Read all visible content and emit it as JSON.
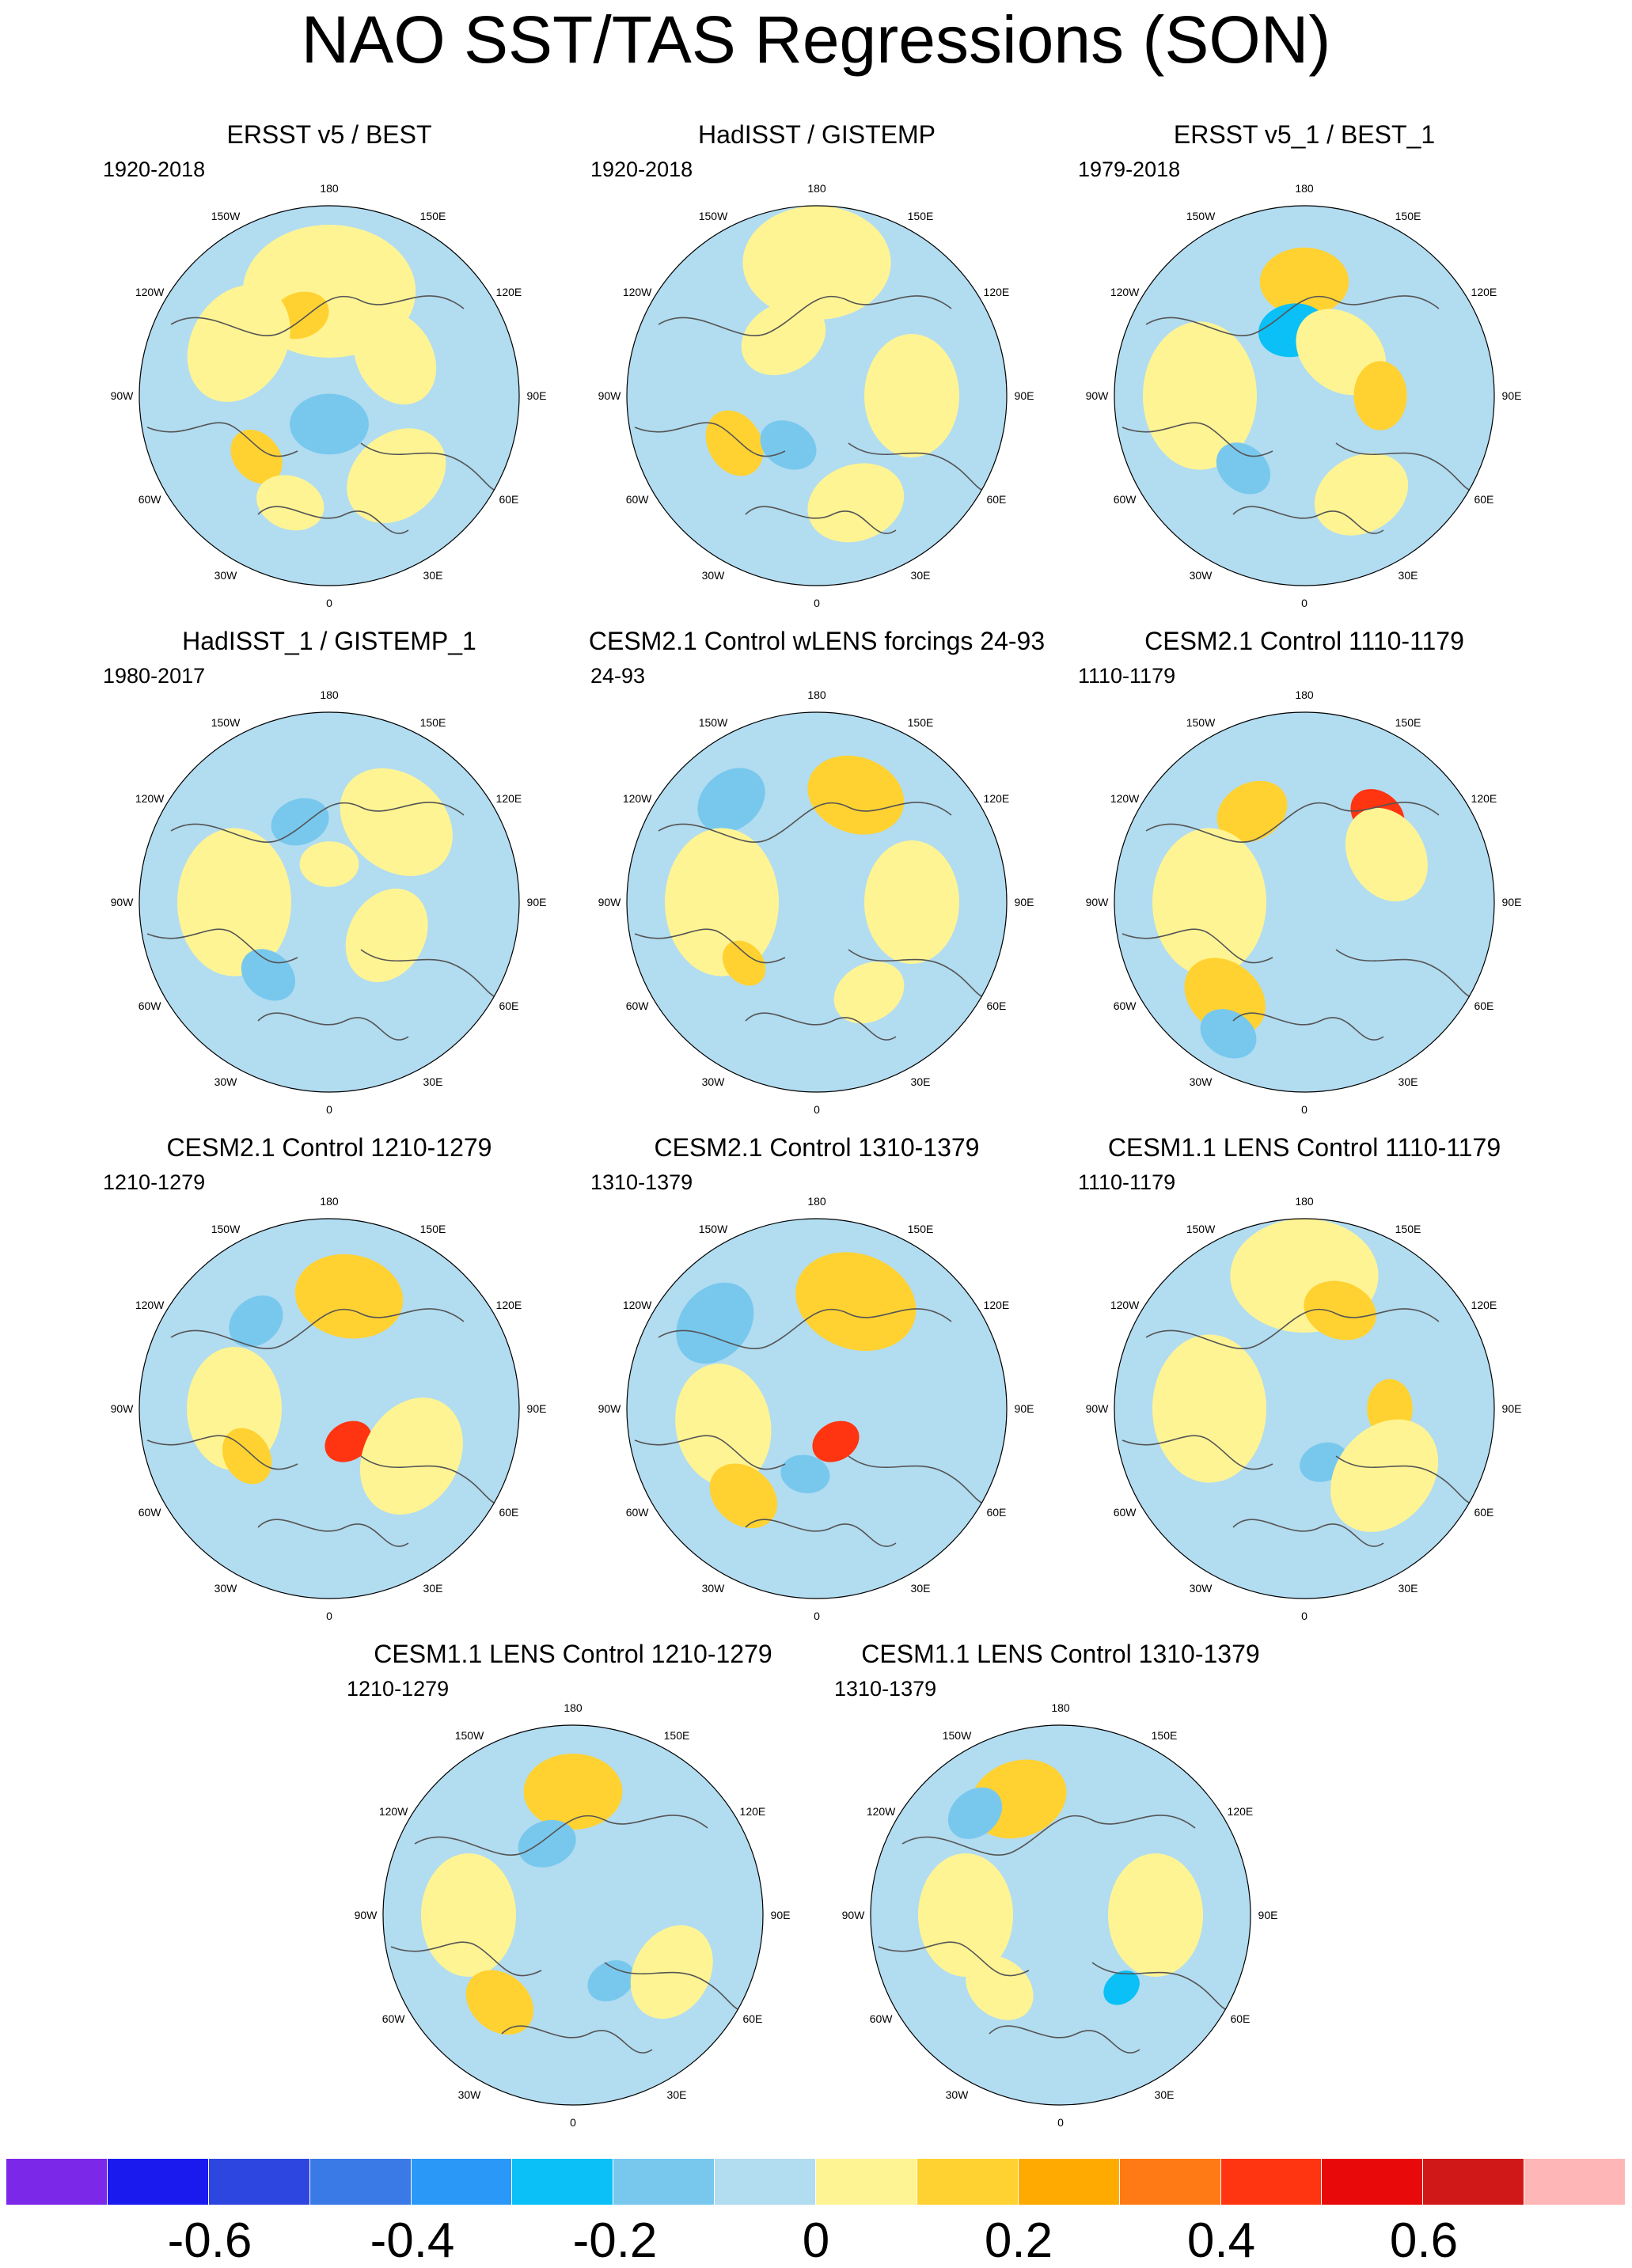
{
  "title": "NAO SST/TAS Regressions (SON)",
  "colors": {
    "land_outline": "#555555",
    "palette": [
      "#7c28e8",
      "#1a1aee",
      "#2e46e0",
      "#3a7ae6",
      "#2a98f6",
      "#0ac0f6",
      "#78c8ee",
      "#b2dcf0",
      "#fff494",
      "#ffd232",
      "#ffaa00",
      "#ff7a14",
      "#ff3410",
      "#e80a0a",
      "#d01818",
      "#ffb6b6"
    ]
  },
  "colorbar": {
    "labels": [
      "-0.6",
      "-0.4",
      "-0.2",
      "0",
      "0.2",
      "0.4",
      "0.6"
    ]
  },
  "longitude_labels": [
    "180",
    "150E",
    "120E",
    "90E",
    "60E",
    "30E",
    "0",
    "30W",
    "60W",
    "90W",
    "120W",
    "150W"
  ],
  "panels": [
    {
      "title": "ERSST v5 / BEST",
      "period": "1920-2018"
    },
    {
      "title": "HadISST / GISTEMP",
      "period": "1920-2018"
    },
    {
      "title": "ERSST v5_1 / BEST_1",
      "period": "1979-2018"
    },
    {
      "title": "HadISST_1 / GISTEMP_1",
      "period": "1980-2017"
    },
    {
      "title": "CESM2.1 Control wLENS forcings 24-93",
      "period": "24-93"
    },
    {
      "title": "CESM2.1 Control 1110-1179",
      "period": "1110-1179"
    },
    {
      "title": "CESM2.1 Control 1210-1279",
      "period": "1210-1279"
    },
    {
      "title": "CESM2.1 Control 1310-1379",
      "period": "1310-1379"
    },
    {
      "title": "CESM1.1 LENS Control 1110-1179",
      "period": "1110-1179"
    },
    {
      "title": "CESM1.1 LENS Control 1210-1279",
      "period": "1210-1279"
    },
    {
      "title": "CESM1.1 LENS Control 1310-1379",
      "period": "1310-1379"
    }
  ]
}
